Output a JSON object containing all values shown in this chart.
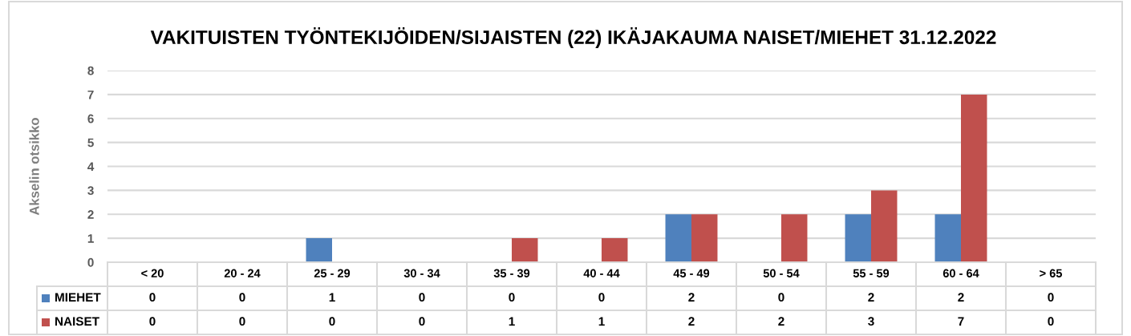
{
  "chart_data": {
    "type": "bar",
    "title": "VAKITUISTEN TYÖNTEKIJÖIDEN/SIJAISTEN (22) IKÄJAKAUMA NAISET/MIEHET 31.12.2022",
    "ylabel": "Akselin otsikko",
    "categories": [
      "< 20",
      "20 - 24",
      "25 - 29",
      "30 - 34",
      "35 - 39",
      "40 - 44",
      "45 - 49",
      "50 - 54",
      "55 - 59",
      "60 - 64",
      "> 65"
    ],
    "series": [
      {
        "name": "MIEHET",
        "color": "#4f81bd",
        "values": [
          0,
          0,
          1,
          0,
          0,
          0,
          2,
          0,
          2,
          2,
          0
        ]
      },
      {
        "name": "NAISET",
        "color": "#c0504d",
        "values": [
          0,
          0,
          0,
          0,
          1,
          1,
          2,
          2,
          3,
          7,
          0
        ]
      }
    ],
    "ylim": [
      0,
      8
    ],
    "yticks": [
      0,
      1,
      2,
      3,
      4,
      5,
      6,
      7,
      8
    ],
    "grid": "y",
    "legend": "bottom",
    "data_labels": true
  }
}
